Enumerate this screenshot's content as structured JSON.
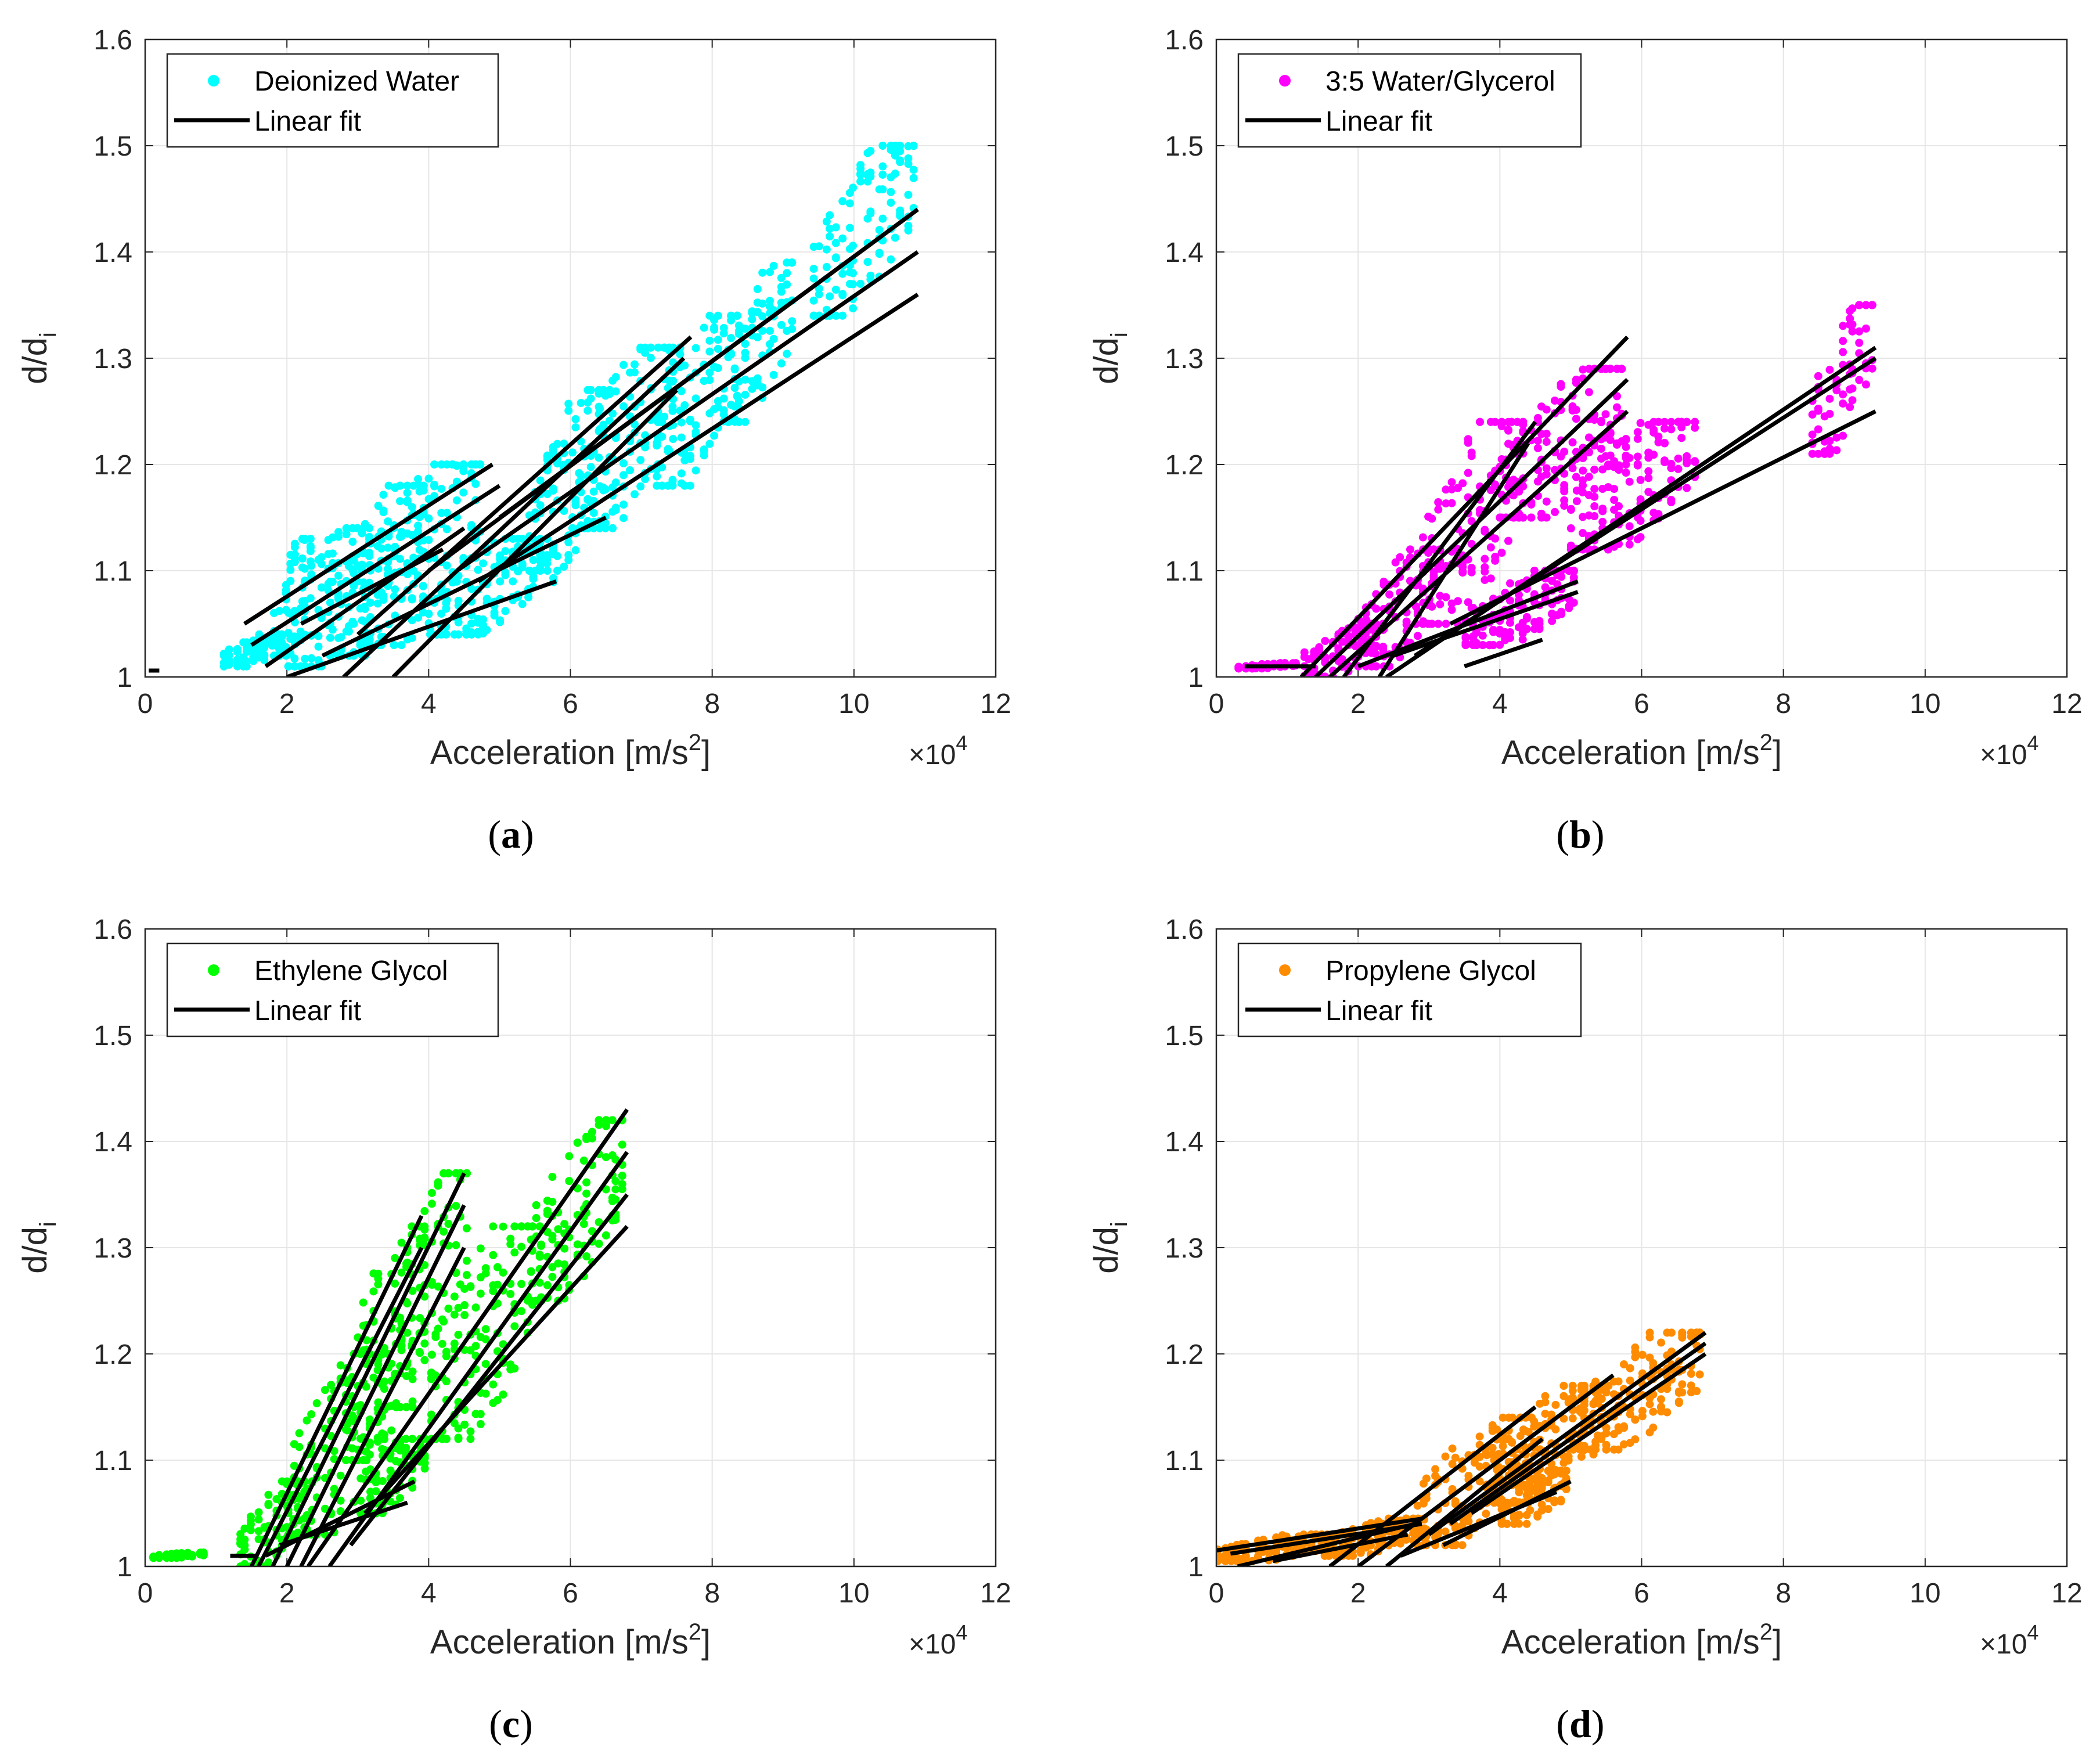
{
  "chart_data": [
    {
      "panel": "a",
      "type": "scatter",
      "caption": "a",
      "xlabel": "Acceleration [m/s",
      "xlabel_sup": "2",
      "xlabel_end": "]",
      "ylabel": "d/d",
      "ylabel_sub": "i",
      "x_multiplier_base": "×10",
      "x_multiplier_exp": "4",
      "xlim": [
        0,
        12
      ],
      "ylim": [
        1,
        1.6
      ],
      "xticks": [
        "0",
        "2",
        "4",
        "6",
        "8",
        "10",
        "12"
      ],
      "yticks": [
        "1",
        "1.1",
        "1.2",
        "1.3",
        "1.4",
        "1.5",
        "1.6"
      ],
      "grid": true,
      "legend_position": "top-left",
      "series": [
        {
          "name": "Deionized Water",
          "kind": "points",
          "color": "#00ffff",
          "clusters": [
            {
              "x": [
                1.1,
                2.0
              ],
              "y": [
                1.01,
                1.04
              ]
            },
            {
              "x": [
                1.8,
                2.4
              ],
              "y": [
                1.02,
                1.13
              ]
            },
            {
              "x": [
                2.0,
                3.2
              ],
              "y": [
                1.01,
                1.14
              ]
            },
            {
              "x": [
                2.6,
                4.0
              ],
              "y": [
                1.02,
                1.18
              ]
            },
            {
              "x": [
                3.0,
                4.8
              ],
              "y": [
                1.03,
                1.2
              ]
            },
            {
              "x": [
                4.0,
                5.8
              ],
              "y": [
                1.04,
                1.13
              ]
            },
            {
              "x": [
                5.4,
                6.6
              ],
              "y": [
                1.1,
                1.27
              ]
            },
            {
              "x": [
                6.0,
                7.6
              ],
              "y": [
                1.14,
                1.31
              ]
            },
            {
              "x": [
                7.2,
                8.4
              ],
              "y": [
                1.18,
                1.34
              ]
            },
            {
              "x": [
                8.2,
                9.2
              ],
              "y": [
                1.24,
                1.39
              ]
            },
            {
              "x": [
                9.4,
                10.9
              ],
              "y": [
                1.34,
                1.5
              ]
            }
          ]
        },
        {
          "name": "Linear fit",
          "kind": "lines",
          "color": "#000000",
          "lines": [
            [
              1.4,
              1.05,
              4.9,
              1.2
            ],
            [
              1.5,
              1.03,
              5.0,
              1.18
            ],
            [
              1.7,
              1.01,
              4.5,
              1.14
            ],
            [
              2.0,
              1.0,
              5.8,
              1.09
            ],
            [
              2.5,
              1.02,
              6.5,
              1.15
            ],
            [
              2.8,
              1.0,
              7.6,
              1.3
            ],
            [
              3.0,
              1.04,
              7.7,
              1.32
            ],
            [
              3.5,
              1.0,
              7.5,
              1.27
            ],
            [
              2.2,
              1.05,
              4.2,
              1.12
            ],
            [
              4.0,
              1.1,
              10.9,
              1.44
            ],
            [
              4.4,
              1.1,
              10.9,
              1.4
            ],
            [
              4.7,
              1.09,
              10.9,
              1.36
            ],
            [
              5.0,
              1.15,
              10.9,
              1.44
            ],
            [
              0.05,
              1.006,
              0.2,
              1.006
            ]
          ]
        }
      ]
    },
    {
      "panel": "b",
      "type": "scatter",
      "caption": "b",
      "xlabel": "Acceleration [m/s",
      "xlabel_sup": "2",
      "xlabel_end": "]",
      "ylabel": "d/d",
      "ylabel_sub": "i",
      "x_multiplier_base": "×10",
      "x_multiplier_exp": "4",
      "xlim": [
        0,
        12
      ],
      "ylim": [
        1,
        1.6
      ],
      "xticks": [
        "0",
        "2",
        "4",
        "6",
        "8",
        "10",
        "12"
      ],
      "yticks": [
        "1",
        "1.1",
        "1.2",
        "1.3",
        "1.4",
        "1.5",
        "1.6"
      ],
      "grid": true,
      "legend_position": "top-left",
      "series": [
        {
          "name": "3:5 Water/Glycerol",
          "kind": "points",
          "color": "#ff00ff",
          "clusters": [
            {
              "x": [
                0.3,
                1.2
              ],
              "y": [
                1.008,
                1.013
              ]
            },
            {
              "x": [
                1.2,
                2.4
              ],
              "y": [
                1.0,
                1.05
              ]
            },
            {
              "x": [
                2.0,
                3.2
              ],
              "y": [
                1.01,
                1.12
              ]
            },
            {
              "x": [
                2.8,
                4.4
              ],
              "y": [
                1.05,
                1.24
              ]
            },
            {
              "x": [
                4.0,
                5.8
              ],
              "y": [
                1.15,
                1.29
              ]
            },
            {
              "x": [
                3.5,
                5.1
              ],
              "y": [
                1.03,
                1.1
              ]
            },
            {
              "x": [
                5.0,
                6.8
              ],
              "y": [
                1.12,
                1.24
              ]
            },
            {
              "x": [
                8.4,
                9.3
              ],
              "y": [
                1.21,
                1.35
              ]
            }
          ]
        },
        {
          "name": "Linear fit",
          "kind": "lines",
          "color": "#000000",
          "lines": [
            [
              1.2,
              1.0,
              5.8,
              1.32
            ],
            [
              1.4,
              1.0,
              5.8,
              1.28
            ],
            [
              1.6,
              1.0,
              5.8,
              1.25
            ],
            [
              1.8,
              1.0,
              4.5,
              1.24
            ],
            [
              2.3,
              1.0,
              4.4,
              1.22
            ],
            [
              2.0,
              1.01,
              5.1,
              1.09
            ],
            [
              2.5,
              1.02,
              5.1,
              1.08
            ],
            [
              2.4,
              1.0,
              9.3,
              1.31
            ],
            [
              2.8,
              1.02,
              9.3,
              1.3
            ],
            [
              3.3,
              1.05,
              9.3,
              1.25
            ],
            [
              3.5,
              1.01,
              4.6,
              1.035
            ],
            [
              0.4,
              1.01,
              1.4,
              1.01
            ]
          ]
        }
      ]
    },
    {
      "panel": "c",
      "type": "scatter",
      "caption": "c",
      "xlabel": "Acceleration [m/s",
      "xlabel_sup": "2",
      "xlabel_end": "]",
      "ylabel": "d/d",
      "ylabel_sub": "i",
      "x_multiplier_base": "×10",
      "x_multiplier_exp": "4",
      "xlim": [
        0,
        12
      ],
      "ylim": [
        1,
        1.6
      ],
      "xticks": [
        "0",
        "2",
        "4",
        "6",
        "8",
        "10",
        "12"
      ],
      "yticks": [
        "1",
        "1.1",
        "1.2",
        "1.3",
        "1.4",
        "1.5",
        "1.6"
      ],
      "grid": true,
      "legend_position": "top-left",
      "series": [
        {
          "name": "Ethylene Glycol",
          "kind": "points",
          "color": "#00ff00",
          "clusters": [
            {
              "x": [
                0.1,
                0.9
              ],
              "y": [
                1.008,
                1.013
              ]
            },
            {
              "x": [
                1.3,
                2.4
              ],
              "y": [
                1.0,
                1.08
              ]
            },
            {
              "x": [
                2.0,
                3.5
              ],
              "y": [
                1.03,
                1.2
              ]
            },
            {
              "x": [
                2.8,
                4.0
              ],
              "y": [
                1.1,
                1.32
              ]
            },
            {
              "x": [
                3.5,
                4.6
              ],
              "y": [
                1.15,
                1.37
              ]
            },
            {
              "x": [
                3.0,
                4.0
              ],
              "y": [
                1.05,
                1.12
              ]
            },
            {
              "x": [
                4.0,
                5.6
              ],
              "y": [
                1.12,
                1.32
              ]
            },
            {
              "x": [
                5.4,
                6.8
              ],
              "y": [
                1.25,
                1.42
              ]
            }
          ]
        },
        {
          "name": "Linear fit",
          "kind": "lines",
          "color": "#000000",
          "lines": [
            [
              1.5,
              1.0,
              3.9,
              1.33
            ],
            [
              1.6,
              1.0,
              3.9,
              1.3
            ],
            [
              1.8,
              1.0,
              4.5,
              1.37
            ],
            [
              2.0,
              1.0,
              4.5,
              1.34
            ],
            [
              2.2,
              1.0,
              4.5,
              1.3
            ],
            [
              1.7,
              1.01,
              3.8,
              1.08
            ],
            [
              1.9,
              1.02,
              3.7,
              1.06
            ],
            [
              2.3,
              1.0,
              6.8,
              1.43
            ],
            [
              2.6,
              1.0,
              6.8,
              1.39
            ],
            [
              2.9,
              1.02,
              6.8,
              1.35
            ],
            [
              3.1,
              1.05,
              6.8,
              1.32
            ],
            [
              1.2,
              1.01,
              1.6,
              1.01
            ]
          ]
        }
      ]
    },
    {
      "panel": "d",
      "type": "scatter",
      "caption": "d",
      "xlabel": "Acceleration [m/s",
      "xlabel_sup": "2",
      "xlabel_end": "]",
      "ylabel": "d/d",
      "ylabel_sub": "i",
      "x_multiplier_base": "×10",
      "x_multiplier_exp": "4",
      "xlim": [
        0,
        12
      ],
      "ylim": [
        1,
        1.6
      ],
      "xticks": [
        "0",
        "2",
        "4",
        "6",
        "8",
        "10",
        "12"
      ],
      "yticks": [
        "1",
        "1.1",
        "1.2",
        "1.3",
        "1.4",
        "1.5",
        "1.6"
      ],
      "grid": true,
      "legend_position": "top-left",
      "series": [
        {
          "name": "Propylene Glycol",
          "kind": "points",
          "color": "#ff8c00",
          "clusters": [
            {
              "x": [
                0.0,
                1.7
              ],
              "y": [
                1.005,
                1.03
              ]
            },
            {
              "x": [
                1.5,
                3.0
              ],
              "y": [
                1.01,
                1.045
              ]
            },
            {
              "x": [
                2.8,
                4.5
              ],
              "y": [
                1.02,
                1.14
              ]
            },
            {
              "x": [
                3.8,
                5.6
              ],
              "y": [
                1.06,
                1.17
              ]
            },
            {
              "x": [
                5.0,
                6.9
              ],
              "y": [
                1.11,
                1.22
              ]
            },
            {
              "x": [
                4.0,
                5.0
              ],
              "y": [
                1.04,
                1.09
              ]
            }
          ]
        },
        {
          "name": "Linear fit",
          "kind": "lines",
          "color": "#000000",
          "lines": [
            [
              0.0,
              1.015,
              2.9,
              1.045
            ],
            [
              0.2,
              1.012,
              2.9,
              1.04
            ],
            [
              0.3,
              1.0,
              2.8,
              1.04
            ],
            [
              0.8,
              1.005,
              2.7,
              1.03
            ],
            [
              1.6,
              1.0,
              4.5,
              1.15
            ],
            [
              2.0,
              1.0,
              5.6,
              1.18
            ],
            [
              2.4,
              1.0,
              4.6,
              1.12
            ],
            [
              3.0,
              1.03,
              6.9,
              1.22
            ],
            [
              3.3,
              1.04,
              6.9,
              1.21
            ],
            [
              3.6,
              1.05,
              6.9,
              1.2
            ],
            [
              3.2,
              1.02,
              5.0,
              1.08
            ],
            [
              2.6,
              1.01,
              4.8,
              1.07
            ]
          ]
        }
      ]
    }
  ]
}
